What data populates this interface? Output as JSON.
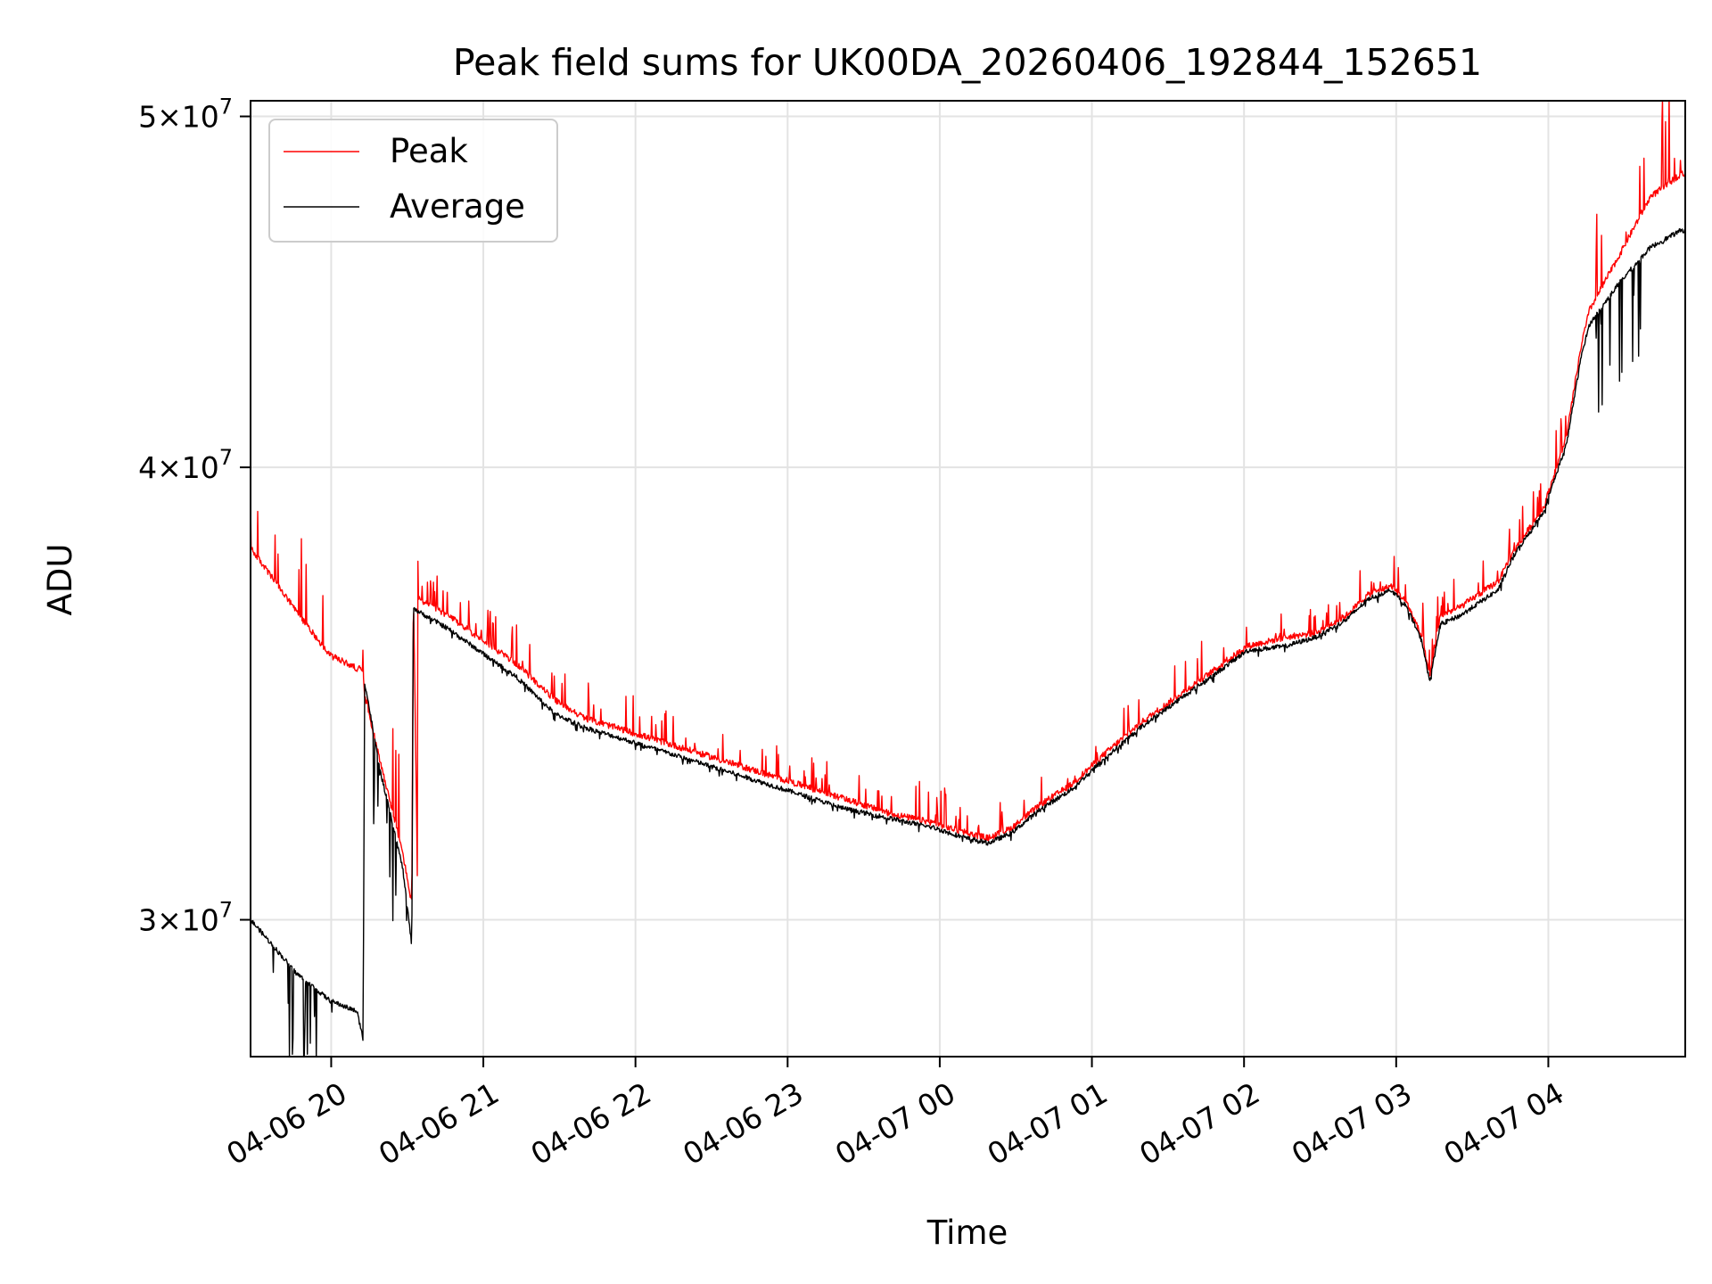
{
  "chart_data": {
    "type": "line",
    "title": "Peak field sums for UK00DA_20260406_192844_152651",
    "xlabel": "Time",
    "ylabel": "ADU",
    "x_unit": "hours since 2026-04-06 19:28",
    "xlim": [
      0,
      9.43
    ],
    "ylim_log": [
      27500000,
      50500000
    ],
    "y_scale": "log",
    "grid": true,
    "legend_position": "upper-left",
    "x_ticks": [
      {
        "value": 0.53,
        "label": "04-06 20"
      },
      {
        "value": 1.53,
        "label": "04-06 21"
      },
      {
        "value": 2.53,
        "label": "04-06 22"
      },
      {
        "value": 3.53,
        "label": "04-06 23"
      },
      {
        "value": 4.53,
        "label": "04-07 00"
      },
      {
        "value": 5.53,
        "label": "04-07 01"
      },
      {
        "value": 6.53,
        "label": "04-07 02"
      },
      {
        "value": 7.53,
        "label": "04-07 03"
      },
      {
        "value": 8.53,
        "label": "04-07 04"
      }
    ],
    "y_ticks": [
      {
        "value": 30000000,
        "base": "3",
        "exp": "7"
      },
      {
        "value": 40000000,
        "base": "4",
        "exp": "7"
      },
      {
        "value": 50000000,
        "base": "5",
        "exp": "7"
      }
    ],
    "tick_times_symbol": "×10",
    "series": [
      {
        "name": "Peak",
        "color": "#ff0000",
        "points": [
          [
            0.0,
            38000000
          ],
          [
            0.3,
            36500000
          ],
          [
            0.52,
            35500000
          ],
          [
            0.7,
            35200000
          ],
          [
            0.74,
            35200000
          ],
          [
            0.75,
            34600000
          ],
          [
            0.85,
            33200000
          ],
          [
            1.0,
            31300000
          ],
          [
            1.1,
            30000000
          ],
          [
            1.06,
            30300000
          ],
          [
            1.07,
            37100000
          ],
          [
            1.1,
            36800000
          ],
          [
            1.3,
            36400000
          ],
          [
            1.5,
            35900000
          ],
          [
            1.75,
            35300000
          ],
          [
            2.0,
            34500000
          ],
          [
            2.2,
            34100000
          ],
          [
            2.5,
            33800000
          ],
          [
            2.8,
            33500000
          ],
          [
            3.0,
            33300000
          ],
          [
            3.3,
            33000000
          ],
          [
            3.6,
            32700000
          ],
          [
            3.9,
            32400000
          ],
          [
            4.2,
            32100000
          ],
          [
            4.5,
            31900000
          ],
          [
            4.7,
            31700000
          ],
          [
            4.85,
            31600000
          ],
          [
            5.0,
            31800000
          ],
          [
            5.2,
            32300000
          ],
          [
            5.4,
            32700000
          ],
          [
            5.6,
            33300000
          ],
          [
            5.85,
            34000000
          ],
          [
            6.1,
            34600000
          ],
          [
            6.35,
            35200000
          ],
          [
            6.55,
            35700000
          ],
          [
            6.8,
            35900000
          ],
          [
            7.0,
            36000000
          ],
          [
            7.2,
            36400000
          ],
          [
            7.35,
            36900000
          ],
          [
            7.5,
            37100000
          ],
          [
            7.6,
            36700000
          ],
          [
            7.7,
            35900000
          ],
          [
            7.75,
            35000000
          ],
          [
            7.82,
            36400000
          ],
          [
            7.95,
            36600000
          ],
          [
            8.2,
            37200000
          ],
          [
            8.3,
            37900000
          ],
          [
            8.5,
            39000000
          ],
          [
            8.65,
            40800000
          ],
          [
            8.75,
            43300000
          ],
          [
            8.8,
            44200000
          ],
          [
            9.0,
            45800000
          ],
          [
            9.2,
            47500000
          ],
          [
            9.4,
            48200000
          ]
        ]
      },
      {
        "name": "Average",
        "color": "#000000",
        "points": [
          [
            0.0,
            30000000
          ],
          [
            0.3,
            29000000
          ],
          [
            0.52,
            28500000
          ],
          [
            0.7,
            28300000
          ],
          [
            0.74,
            27800000
          ],
          [
            0.75,
            34900000
          ],
          [
            0.85,
            33000000
          ],
          [
            1.0,
            31000000
          ],
          [
            1.06,
            29500000
          ],
          [
            1.07,
            36600000
          ],
          [
            1.1,
            36500000
          ],
          [
            1.3,
            36100000
          ],
          [
            1.5,
            35600000
          ],
          [
            1.75,
            35000000
          ],
          [
            2.0,
            34200000
          ],
          [
            2.2,
            33900000
          ],
          [
            2.5,
            33600000
          ],
          [
            2.8,
            33300000
          ],
          [
            3.0,
            33100000
          ],
          [
            3.3,
            32800000
          ],
          [
            3.6,
            32500000
          ],
          [
            3.9,
            32200000
          ],
          [
            4.2,
            32000000
          ],
          [
            4.5,
            31800000
          ],
          [
            4.7,
            31600000
          ],
          [
            4.85,
            31500000
          ],
          [
            5.0,
            31700000
          ],
          [
            5.2,
            32200000
          ],
          [
            5.4,
            32600000
          ],
          [
            5.6,
            33200000
          ],
          [
            5.85,
            33900000
          ],
          [
            6.1,
            34500000
          ],
          [
            6.35,
            35100000
          ],
          [
            6.55,
            35600000
          ],
          [
            6.8,
            35700000
          ],
          [
            7.0,
            35900000
          ],
          [
            7.2,
            36300000
          ],
          [
            7.35,
            36800000
          ],
          [
            7.5,
            37000000
          ],
          [
            7.6,
            36600000
          ],
          [
            7.7,
            35800000
          ],
          [
            7.75,
            34900000
          ],
          [
            7.82,
            36200000
          ],
          [
            7.95,
            36400000
          ],
          [
            8.2,
            37000000
          ],
          [
            8.3,
            37800000
          ],
          [
            8.5,
            38900000
          ],
          [
            8.65,
            40600000
          ],
          [
            8.75,
            43000000
          ],
          [
            8.8,
            43800000
          ],
          [
            9.0,
            45000000
          ],
          [
            9.2,
            46000000
          ],
          [
            9.4,
            46500000
          ]
        ]
      }
    ]
  }
}
